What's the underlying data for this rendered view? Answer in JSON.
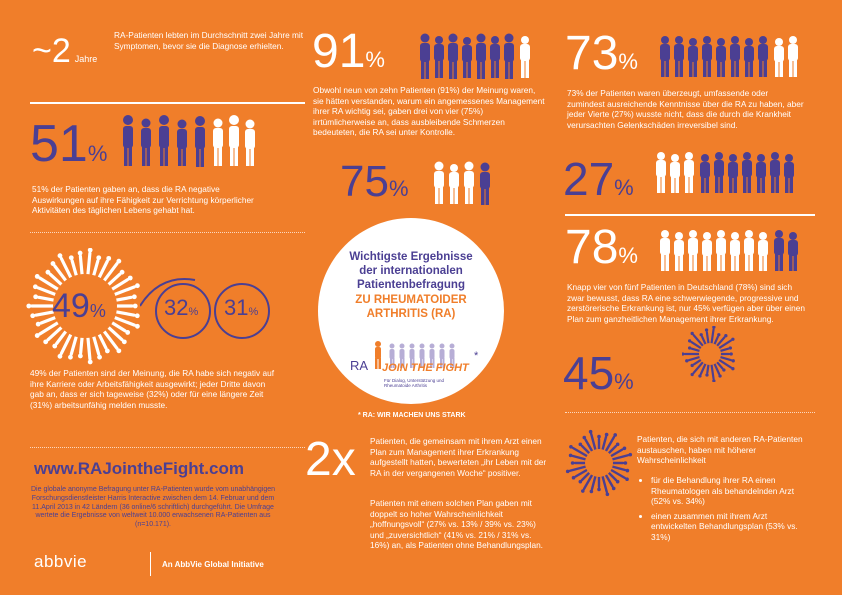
{
  "stat_2years": {
    "number": "~2",
    "unit": "Jahre",
    "text": "RA-Patienten lebten im Durchschnitt zwei Jahre mit Symptomen, bevor sie die Diagnose erhielten."
  },
  "stat_51": {
    "number": "51",
    "unit": "%",
    "text": "51% der Patienten gaben an, dass die RA negative Auswirkungen auf ihre Fähigkeit zur Verrichtung körperlicher Aktivitäten des täglichen Lebens gehabt hat."
  },
  "stat_49": {
    "number": "49",
    "unit": "%",
    "sub1_number": "32",
    "sub1_unit": "%",
    "sub2_number": "31",
    "sub2_unit": "%",
    "text": "49% der Patienten sind der Meinung, die RA habe sich negativ auf ihre Karriere oder Arbeitsfähigkeit ausgewirkt; jeder Dritte davon gab an, dass er sich tageweise (32%) oder für eine längere Zeit (31%) arbeitsunfähig melden musste."
  },
  "stat_91": {
    "number": "91",
    "unit": "%",
    "text": "Obwohl neun von zehn Patienten (91%) der Meinung waren, sie hätten verstanden, warum ein angemessenes Management ihrer RA wichtig sei, gaben drei von vier (75%) irrtümlicherweise an, dass ausbleibende Schmerzen bedeuteten, die RA sei unter Kontrolle.",
    "second_number": "75",
    "second_unit": "%"
  },
  "stat_73": {
    "number": "73",
    "unit": "%",
    "text": "73% der Patienten waren überzeugt, umfassende oder zumindest ausreichende  Kenntnisse über die RA zu haben, aber jeder Vierte (27%) wusste nicht, dass die durch die Krankheit verursachten Gelenkschäden irreversibel sind.",
    "second_number": "27",
    "second_unit": "%"
  },
  "stat_78": {
    "number": "78",
    "unit": "%",
    "text": "Knapp vier von fünf Patienten in Deutschland (78%) sind sich zwar bewusst, dass RA eine schwerwiegende, progressive und zerstörerische Erkrankung ist, nur 45% verfügen aber über einen Plan zum ganzheitlichen Management ihrer Erkrankung.",
    "second_number": "45",
    "second_unit": "%"
  },
  "center": {
    "title": "Wichtigste Ergebnisse der internationalen Patientenbefragung",
    "subtitle": "ZU RHEUMATOIDER ARTHRITIS (RA)",
    "logo_ra": "RA",
    "logo_main": "JOIN THE FIGHT",
    "logo_small": "Für Dialog, Unterstützung und Rheumatoide Arthritis",
    "asterisk": "*",
    "footnote": "* RA: WIR MACHEN UNS STARK"
  },
  "stat_2x": {
    "number": "2x",
    "text_a": "Patienten, die gemeinsam mit ihrem Arzt einen Plan zum Management ihrer Erkrankung aufgestellt hatten, bewerteten „ihr Leben mit der RA in der vergangenen Woche“ positiver.",
    "text_b": "Patienten mit einem solchen Plan gaben mit doppelt so hoher Wahrscheinlichkeit „hoffnungsvoll“ (27% vs. 13% / 39% vs. 23%) und „zuversichtlich“ (41% vs. 21% / 31% vs. 16%) an, als Patienten ohne Behandlungsplan."
  },
  "stat_exchange": {
    "text": "Patienten, die sich mit anderen RA-Patienten austauschen, haben mit höherer Wahrscheinlichkeit",
    "bullets": [
      "für die Behandlung ihrer RA einen Rheumatologen als behandelnden Arzt (52% vs. 34%)",
      "einen zusammen mit ihrem Arzt entwickelten Behandlungsplan (53% vs. 31%)"
    ]
  },
  "footer": {
    "url": "www.RAJointheFight.com",
    "text": "Die globale anonyme Befragung unter RA-Patienten wurde vom unabhängigen Forschungsdienstleister Harris Interactive zwischen dem 14. Februar und dem 11.April 2013 in 42 Ländern (36 online/6 schriftlich) durchgeführt. Die Umfrage wertete die Ergebnisse von weltweit 10.000 erwachsenen RA-Patienten aus (n=10.171).",
    "brand": "abbvie",
    "tagline": "An AbbVie Global Initiative"
  },
  "colors": {
    "background": "#f07e2a",
    "purple": "#4b3f93",
    "white": "#ffffff"
  }
}
